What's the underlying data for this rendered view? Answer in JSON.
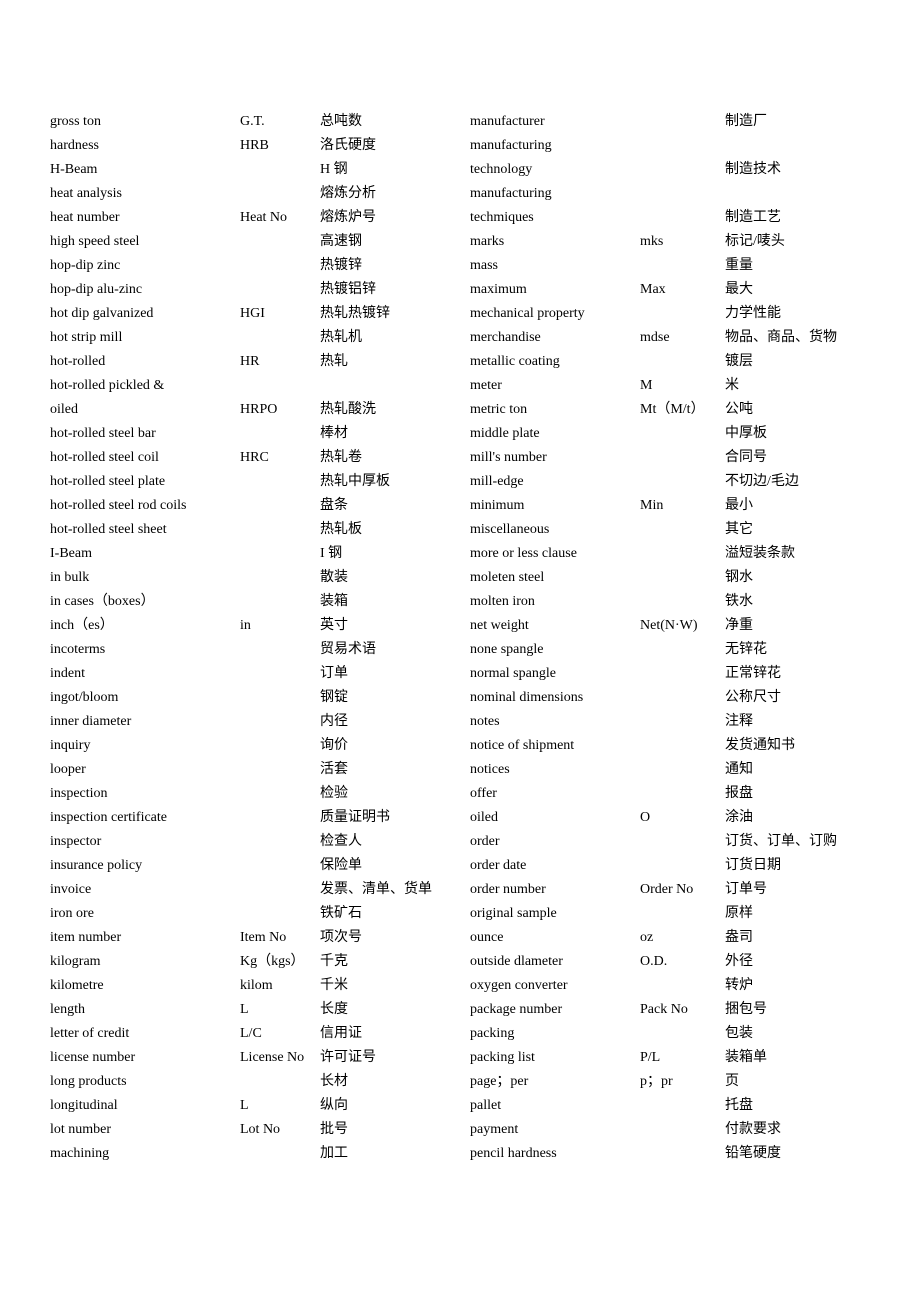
{
  "left": [
    {
      "term": "gross ton",
      "abbr": "G.T.",
      "cn": "总吨数"
    },
    {
      "term": "hardness",
      "abbr": "HRB",
      "cn": " 洛氏硬度"
    },
    {
      "term": "H-Beam",
      "abbr": "",
      "cn": "H 钢"
    },
    {
      "term": "heat analysis",
      "abbr": "",
      "cn": "熔炼分析"
    },
    {
      "term": "heat number",
      "abbr": "Heat No",
      "cn": "熔炼炉号"
    },
    {
      "term": "high speed steel",
      "abbr": "",
      "cn": "高速钢"
    },
    {
      "term": "hop-dip zinc",
      "abbr": "",
      "cn": "热镀锌"
    },
    {
      "term": "hop-dip alu-zinc",
      "abbr": "",
      "cn": "热镀铝锌"
    },
    {
      "term": "hot dip galvanized",
      "abbr": "HGI",
      "cn": "热轧热镀锌"
    },
    {
      "term": "hot strip mill",
      "abbr": "",
      "cn": "热轧机"
    },
    {
      "term": "hot-rolled",
      "abbr": "HR",
      "cn": "热轧"
    },
    {
      "term": "hot-rolled pickled &",
      "abbr": "",
      "cn": ""
    },
    {
      "term": "oiled",
      "abbr": "HRPO",
      "cn": "热轧酸洗"
    },
    {
      "term": "hot-rolled steel bar",
      "abbr": "",
      "cn": "棒材"
    },
    {
      "term": "hot-rolled steel coil",
      "abbr": "HRC",
      "cn": "热轧卷"
    },
    {
      "term": "hot-rolled steel plate",
      "abbr": "",
      "cn": "热轧中厚板"
    },
    {
      "term": "hot-rolled steel rod coils",
      "abbr": "",
      "cn": "盘条"
    },
    {
      "term": "hot-rolled steel sheet",
      "abbr": "",
      "cn": "热轧板"
    },
    {
      "term": "I-Beam",
      "abbr": "",
      "cn": "I 钢"
    },
    {
      "term": "in bulk",
      "abbr": "",
      "cn": "散装"
    },
    {
      "term": "in cases（boxes）",
      "abbr": "",
      "cn": "装箱"
    },
    {
      "term": "inch（es）",
      "abbr": "in",
      "cn": "英寸"
    },
    {
      "term": "incoterms",
      "abbr": "",
      "cn": "贸易术语"
    },
    {
      "term": "indent",
      "abbr": "",
      "cn": "订单"
    },
    {
      "term": "ingot/bloom",
      "abbr": "",
      "cn": "钢锭"
    },
    {
      "term": "inner diameter",
      "abbr": "",
      "cn": "内径"
    },
    {
      "term": "inquiry",
      "abbr": "",
      "cn": "询价"
    },
    {
      "term": "looper",
      "abbr": "",
      "cn": "活套"
    },
    {
      "term": "inspection",
      "abbr": "",
      "cn": "检验"
    },
    {
      "term": "inspection certificate",
      "abbr": "",
      "cn": "质量证明书"
    },
    {
      "term": "inspector",
      "abbr": "",
      "cn": "检查人"
    },
    {
      "term": "insurance policy",
      "abbr": "",
      "cn": "保险单"
    },
    {
      "term": "invoice",
      "abbr": "",
      "cn": "发票、清单、货单"
    },
    {
      "term": "iron ore",
      "abbr": "",
      "cn": "铁矿石"
    },
    {
      "term": "item number",
      "abbr": "Item No",
      "cn": "项次号"
    },
    {
      "term": "kilogram",
      "abbr": "Kg（kgs）",
      "cn": "千克"
    },
    {
      "term": "kilometre",
      "abbr": "kilom",
      "cn": "千米"
    },
    {
      "term": "length",
      "abbr": "L",
      "cn": "长度"
    },
    {
      "term": "letter of credit",
      "abbr": "L/C",
      "cn": "信用证"
    },
    {
      "term": "license number",
      "abbr": "License No",
      "cn": "许可证号"
    },
    {
      "term": "long products",
      "abbr": "",
      "cn": "长材"
    },
    {
      "term": "longitudinal",
      "abbr": "L",
      "cn": "纵向"
    },
    {
      "term": "lot number",
      "abbr": "Lot No",
      "cn": "批号"
    },
    {
      "term": "machining",
      "abbr": "",
      "cn": "加工"
    }
  ],
  "right": [
    {
      "term": "manufacturer",
      "abbr": "",
      "cn": "制造厂"
    },
    {
      "term": "manufacturing",
      "abbr": "",
      "cn": ""
    },
    {
      "term": "technology",
      "abbr": "",
      "cn": "制造技术"
    },
    {
      "term": "manufacturing",
      "abbr": "",
      "cn": ""
    },
    {
      "term": "techmiques",
      "abbr": "",
      "cn": "制造工艺"
    },
    {
      "term": "marks",
      "abbr": "mks",
      "cn": "标记/唛头"
    },
    {
      "term": "mass",
      "abbr": "",
      "cn": "重量"
    },
    {
      "term": "maximum",
      "abbr": "Max",
      "cn": "最大"
    },
    {
      "term": "mechanical property",
      "abbr": "",
      "cn": "力学性能"
    },
    {
      "term": "merchandise",
      "abbr": "mdse",
      "cn": "物品、商品、货物"
    },
    {
      "term": "metallic coating",
      "abbr": "",
      "cn": "镀层"
    },
    {
      "term": "meter",
      "abbr": "M",
      "cn": "米"
    },
    {
      "term": "metric ton",
      "abbr": "Mt（M/t）",
      "cn": "公吨"
    },
    {
      "term": "middle plate",
      "abbr": "",
      "cn": "中厚板"
    },
    {
      "term": "mill's number",
      "abbr": "",
      "cn": "合同号"
    },
    {
      "term": "mill-edge",
      "abbr": "",
      "cn": "不切边/毛边"
    },
    {
      "term": "minimum",
      "abbr": "Min",
      "cn": "最小"
    },
    {
      "term": "miscellaneous",
      "abbr": "",
      "cn": "其它"
    },
    {
      "term": "more or less clause",
      "abbr": "",
      "cn": "溢短装条款"
    },
    {
      "term": "moleten steel",
      "abbr": "",
      "cn": "钢水"
    },
    {
      "term": "molten iron",
      "abbr": "",
      "cn": "铁水"
    },
    {
      "term": "net weight",
      "abbr": "Net(N·W)",
      "cn": "净重"
    },
    {
      "term": "none spangle",
      "abbr": "",
      "cn": "无锌花"
    },
    {
      "term": "normal spangle",
      "abbr": "",
      "cn": "正常锌花"
    },
    {
      "term": "nominal dimensions",
      "abbr": "",
      "cn": "公称尺寸"
    },
    {
      "term": "notes",
      "abbr": "",
      "cn": "注释"
    },
    {
      "term": "notice of shipment",
      "abbr": "",
      "cn": "发货通知书"
    },
    {
      "term": "notices",
      "abbr": "",
      "cn": "通知"
    },
    {
      "term": "offer",
      "abbr": "",
      "cn": "报盘"
    },
    {
      "term": "oiled",
      "abbr": "O",
      "cn": "涂油"
    },
    {
      "term": "order",
      "abbr": "",
      "cn": "订货、订单、订购"
    },
    {
      "term": "order date",
      "abbr": "",
      "cn": "订货日期"
    },
    {
      "term": "order number",
      "abbr": "Order No",
      "cn": "订单号"
    },
    {
      "term": "original sample",
      "abbr": "",
      "cn": "原样"
    },
    {
      "term": "ounce",
      "abbr": "oz",
      "cn": "盎司"
    },
    {
      "term": "outside dlameter",
      "abbr": "O.D.",
      "cn": "外径"
    },
    {
      "term": "oxygen converter",
      "abbr": "",
      "cn": "转炉"
    },
    {
      "term": "package number",
      "abbr": "Pack No",
      "cn": "捆包号"
    },
    {
      "term": "packing",
      "abbr": "",
      "cn": "包装"
    },
    {
      "term": "packing list",
      "abbr": "P/L",
      "cn": "装箱单"
    },
    {
      "term": "page；per",
      "abbr": "p；pr",
      "cn": "页"
    },
    {
      "term": "pallet",
      "abbr": "",
      "cn": "托盘"
    },
    {
      "term": "payment",
      "abbr": "",
      "cn": "付款要求"
    },
    {
      "term": "pencil hardness",
      "abbr": "",
      "cn": "铅笔硬度"
    }
  ]
}
